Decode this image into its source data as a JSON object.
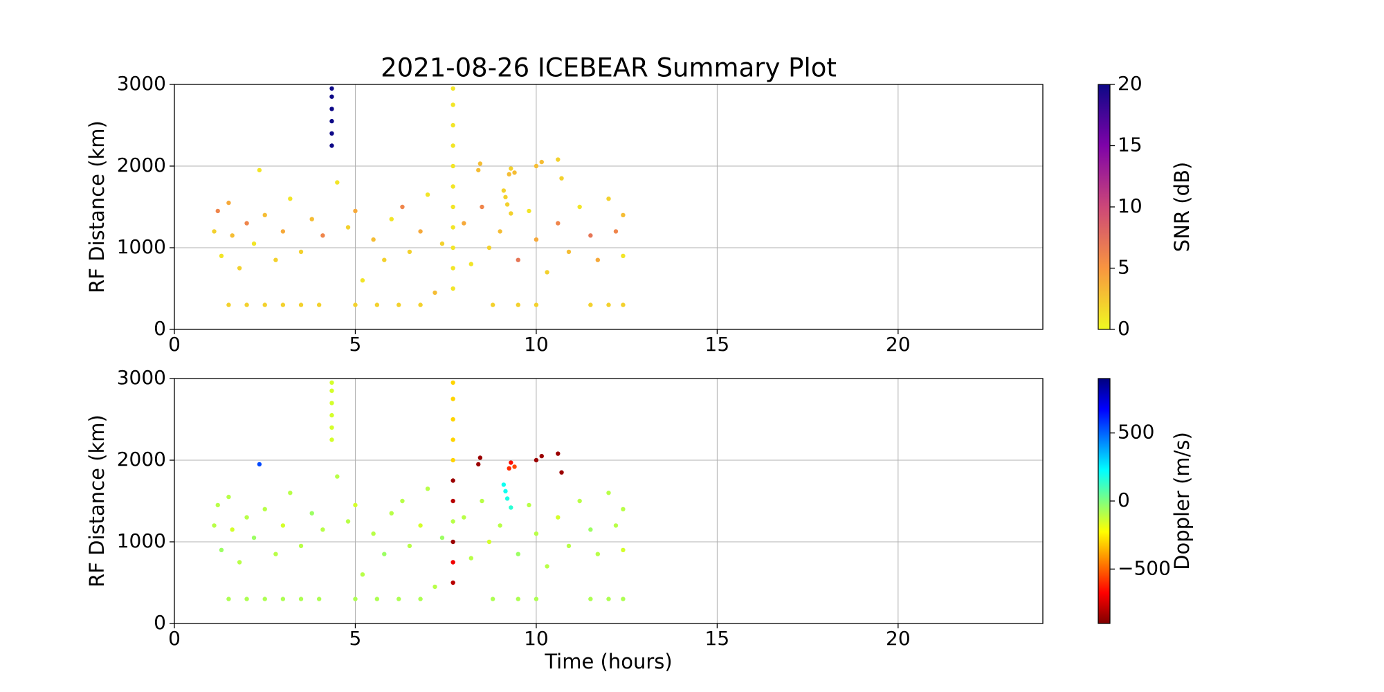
{
  "chart_data": [
    {
      "type": "scatter",
      "title": "2021-08-26 ICEBEAR Summary Plot",
      "ylabel": "RF Distance (km)",
      "x": [
        4.35,
        4.35,
        4.35,
        4.35,
        4.35,
        4.35,
        7.7,
        7.7,
        7.7,
        7.7,
        7.7,
        7.7,
        7.7,
        7.7,
        7.7,
        7.7,
        7.7,
        2.35,
        8.4,
        8.45,
        9.25,
        9.3,
        9.4,
        10.0,
        10.15,
        10.6,
        10.7,
        9.1,
        9.15,
        9.2,
        9.3,
        1.1,
        1.2,
        1.3,
        1.5,
        1.6,
        1.8,
        2.0,
        2.2,
        2.5,
        2.8,
        3.0,
        3.2,
        3.5,
        3.8,
        4.1,
        4.5,
        4.8,
        5.0,
        5.2,
        5.5,
        5.8,
        6.0,
        6.3,
        6.5,
        6.8,
        7.0,
        7.2,
        7.4,
        8.0,
        8.2,
        8.5,
        8.7,
        9.0,
        9.5,
        9.8,
        10.0,
        10.3,
        10.6,
        10.9,
        11.2,
        11.5,
        11.7,
        12.0,
        12.2,
        12.4,
        12.4,
        1.5,
        2.0,
        2.5,
        3.0,
        3.5,
        4.0,
        5.0,
        5.6,
        6.2,
        6.8,
        8.8,
        9.5,
        10.0,
        11.5,
        12.0,
        12.4
      ],
      "values": [
        2250,
        2400,
        2550,
        2700,
        2850,
        2950,
        500,
        750,
        1000,
        1250,
        1500,
        1750,
        2000,
        2250,
        2500,
        2750,
        2950,
        1950,
        1950,
        2030,
        1900,
        1970,
        1920,
        2000,
        2050,
        2080,
        1850,
        1700,
        1620,
        1530,
        1420,
        1200,
        1450,
        900,
        1550,
        1150,
        750,
        1300,
        1050,
        1400,
        850,
        1200,
        1600,
        950,
        1350,
        1150,
        1800,
        1250,
        1450,
        600,
        1100,
        850,
        1350,
        1500,
        950,
        1200,
        1650,
        450,
        1050,
        1300,
        800,
        1500,
        1000,
        1200,
        850,
        1450,
        1100,
        700,
        1300,
        950,
        1500,
        1150,
        850,
        1600,
        1200,
        900,
        1400,
        300,
        300,
        300,
        300,
        300,
        300,
        300,
        300,
        300,
        300,
        300,
        300,
        300,
        300,
        300,
        300
      ],
      "c": [
        20,
        20,
        20,
        20,
        20,
        20,
        1,
        1,
        1,
        1,
        1,
        1,
        1,
        1,
        1,
        1,
        1,
        1,
        3,
        3,
        3,
        2,
        3,
        3,
        3,
        2,
        2,
        2,
        2,
        2,
        2,
        2,
        6,
        1,
        4,
        3,
        2,
        6,
        1,
        3,
        2,
        4,
        1,
        2,
        3,
        6,
        1,
        2,
        4,
        1,
        3,
        2,
        1,
        6,
        2,
        4,
        1,
        3,
        2,
        4,
        1,
        6,
        2,
        3,
        7,
        1,
        4,
        2,
        6,
        3,
        1,
        7,
        4,
        2,
        6,
        1,
        3,
        2,
        2,
        2,
        2,
        2,
        2,
        2,
        2,
        2,
        2,
        2,
        2,
        2,
        2,
        2,
        2
      ],
      "colorbar": {
        "label": "SNR (dB)",
        "colormap": "plasma_r",
        "lim": [
          0,
          20
        ],
        "ticks": [
          0,
          5,
          10,
          15,
          20
        ]
      },
      "xlim": [
        0,
        24
      ],
      "xticks": [
        0,
        5,
        10,
        15,
        20
      ],
      "ylim": [
        0,
        3000
      ],
      "yticks": [
        0,
        1000,
        2000,
        3000
      ],
      "grid": true
    },
    {
      "type": "scatter",
      "xlabel": "Time (hours)",
      "ylabel": "RF Distance (km)",
      "x": [
        4.35,
        4.35,
        4.35,
        4.35,
        4.35,
        4.35,
        7.7,
        7.7,
        7.7,
        7.7,
        7.7,
        7.7,
        7.7,
        7.7,
        7.7,
        7.7,
        7.7,
        2.35,
        8.4,
        8.45,
        9.25,
        9.3,
        9.4,
        10.0,
        10.15,
        10.6,
        10.7,
        9.1,
        9.15,
        9.2,
        9.3,
        1.1,
        1.2,
        1.3,
        1.5,
        1.6,
        1.8,
        2.0,
        2.2,
        2.5,
        2.8,
        3.0,
        3.2,
        3.5,
        3.8,
        4.1,
        4.5,
        4.8,
        5.0,
        5.2,
        5.5,
        5.8,
        6.0,
        6.3,
        6.5,
        6.8,
        7.0,
        7.2,
        7.4,
        8.0,
        8.2,
        8.5,
        8.7,
        9.0,
        9.5,
        9.8,
        10.0,
        10.3,
        10.6,
        10.9,
        11.2,
        11.5,
        11.7,
        12.0,
        12.2,
        12.4,
        12.4,
        1.5,
        2.0,
        2.5,
        3.0,
        3.5,
        4.0,
        5.0,
        5.6,
        6.2,
        6.8,
        8.8,
        9.5,
        10.0,
        11.5,
        12.0,
        12.4
      ],
      "values": [
        2250,
        2400,
        2550,
        2700,
        2850,
        2950,
        500,
        750,
        1000,
        1250,
        1500,
        1750,
        2000,
        2250,
        2500,
        2750,
        2950,
        1950,
        1950,
        2030,
        1900,
        1970,
        1920,
        2000,
        2050,
        2080,
        1850,
        1700,
        1620,
        1530,
        1420,
        1200,
        1450,
        900,
        1550,
        1150,
        750,
        1300,
        1050,
        1400,
        850,
        1200,
        1600,
        950,
        1350,
        1150,
        1800,
        1250,
        1450,
        600,
        1100,
        850,
        1350,
        1500,
        950,
        1200,
        1650,
        450,
        1050,
        1300,
        800,
        1500,
        1000,
        1200,
        850,
        1450,
        1100,
        700,
        1300,
        950,
        1500,
        1150,
        850,
        1600,
        1200,
        900,
        1400,
        300,
        300,
        300,
        300,
        300,
        300,
        300,
        300,
        300,
        300,
        300,
        300,
        300,
        300,
        300,
        300
      ],
      "c": [
        -150,
        -150,
        -150,
        -150,
        -150,
        -150,
        -800,
        -700,
        -850,
        -100,
        -800,
        -850,
        -300,
        -300,
        -300,
        -300,
        -300,
        550,
        -850,
        -850,
        -600,
        -650,
        -550,
        -850,
        -850,
        -850,
        -850,
        200,
        200,
        180,
        150,
        -100,
        -100,
        -50,
        -100,
        -150,
        -100,
        -100,
        -50,
        -100,
        -100,
        -150,
        -100,
        -100,
        -50,
        -100,
        -100,
        -100,
        -150,
        -100,
        -100,
        -50,
        -100,
        -100,
        -100,
        -150,
        -100,
        -100,
        -50,
        -100,
        -100,
        -100,
        -150,
        -100,
        -50,
        -100,
        -100,
        -100,
        -150,
        -100,
        -100,
        -50,
        -100,
        -100,
        -100,
        -150,
        -100,
        -80,
        -80,
        -80,
        -80,
        -80,
        -80,
        -80,
        -80,
        -80,
        -80,
        -80,
        -80,
        -80,
        -80,
        -80,
        -80
      ],
      "colorbar": {
        "label": "Doppler (m/s)",
        "colormap": "jet_r",
        "lim": [
          -900,
          900
        ],
        "ticks": [
          500,
          0,
          {
            "value": -500,
            "label": "−500"
          }
        ]
      },
      "xlim": [
        0,
        24
      ],
      "xticks": [
        0,
        5,
        10,
        15,
        20
      ],
      "ylim": [
        0,
        3000
      ],
      "yticks": [
        0,
        1000,
        2000,
        3000
      ],
      "grid": true
    }
  ]
}
